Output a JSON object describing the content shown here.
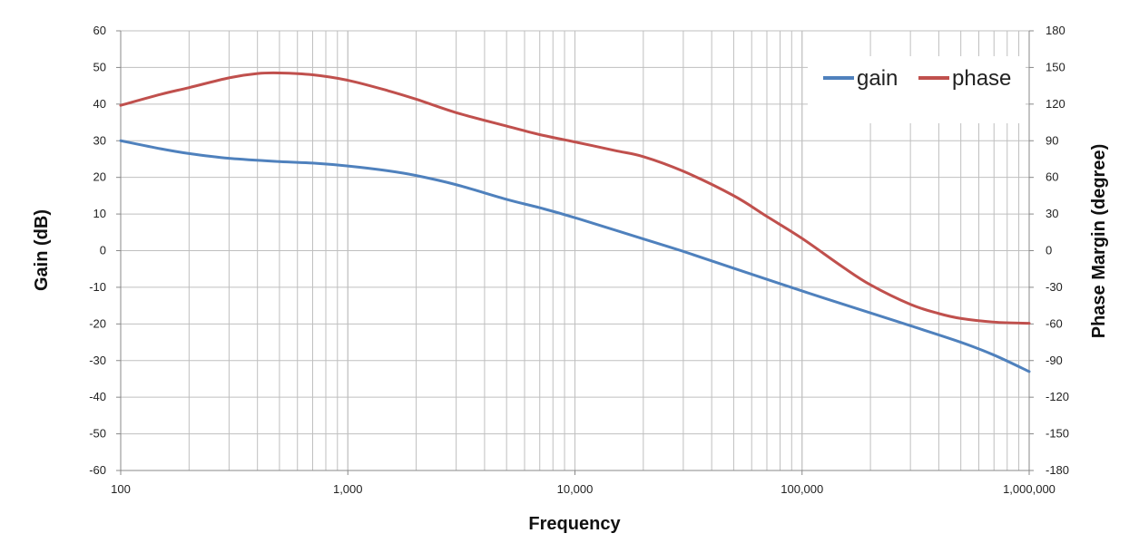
{
  "chart_data": {
    "type": "line",
    "xlabel": "Frequency",
    "ylabel": "Gain (dB)",
    "y2label": "Phase Margin (degree)",
    "xscale": "log",
    "xlim": [
      100,
      1000000
    ],
    "ylim": [
      -60,
      60
    ],
    "y2lim": [
      -180,
      180
    ],
    "x_ticks": [
      {
        "value": 100,
        "label": "100"
      },
      {
        "value": 1000,
        "label": "1,000"
      },
      {
        "value": 10000,
        "label": "10,000"
      },
      {
        "value": 100000,
        "label": "100,000"
      },
      {
        "value": 1000000,
        "label": "1,000,000"
      }
    ],
    "y_ticks": [
      60,
      50,
      40,
      30,
      20,
      10,
      0,
      -10,
      -20,
      -30,
      -40,
      -50,
      -60
    ],
    "y2_ticks": [
      180,
      150,
      120,
      90,
      60,
      30,
      0,
      -30,
      -60,
      -90,
      -120,
      -150,
      -180
    ],
    "grid": true,
    "legend_position": "top-right",
    "series": [
      {
        "name": "gain",
        "axis": "left",
        "color": "#4f81bd",
        "x": [
          100,
          150,
          200,
          300,
          500,
          700,
          1000,
          1500,
          2000,
          3000,
          5000,
          7000,
          10000,
          20000,
          30000,
          50000,
          100000,
          200000,
          300000,
          500000,
          700000,
          1000000
        ],
        "y": [
          30,
          27.8,
          26.5,
          25.2,
          24.3,
          23.9,
          23.1,
          21.8,
          20.5,
          18,
          14,
          11.7,
          9,
          3.2,
          -0.2,
          -4.8,
          -11,
          -17,
          -20.5,
          -25,
          -28.5,
          -33
        ]
      },
      {
        "name": "phase",
        "axis": "right",
        "color": "#c0504d",
        "x": [
          100,
          150,
          200,
          300,
          400,
          500,
          700,
          1000,
          1500,
          2000,
          3000,
          5000,
          7000,
          10000,
          15000,
          20000,
          30000,
          50000,
          70000,
          100000,
          150000,
          200000,
          300000,
          400000,
          500000,
          700000,
          1000000
        ],
        "y": [
          119,
          128,
          133.5,
          141.5,
          145,
          145.5,
          144,
          139.5,
          131,
          124,
          113,
          102,
          95,
          89,
          82,
          77,
          65,
          45,
          28,
          10,
          -13,
          -28,
          -44,
          -51.5,
          -55.5,
          -58.5,
          -59.5
        ]
      }
    ]
  }
}
